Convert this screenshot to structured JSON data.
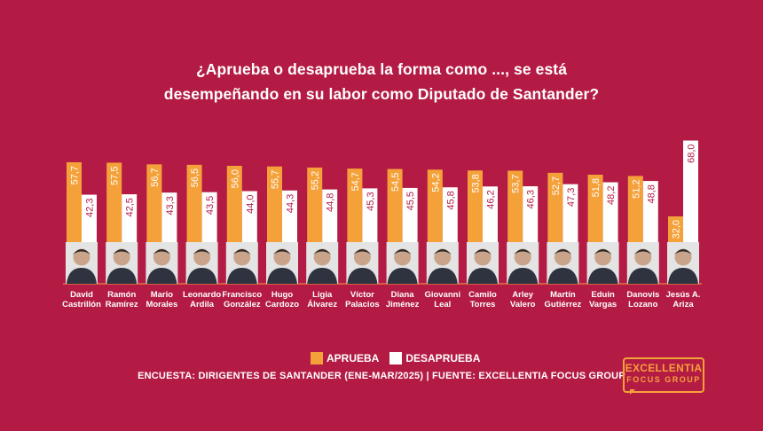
{
  "title_line1": "¿Aprueba o desaprueba la forma como ..., se está",
  "title_line2": "desempeñando en su labor como Diputado de Santander?",
  "legend": {
    "approve": "APRUEBA",
    "disapprove": "DESAPRUEBA"
  },
  "source": "ENCUESTA: DIRIGENTES DE SANTANDER (ENE-MAR/2025) | FUENTE: EXCELLENTIA FOCUS GROUP",
  "logo": {
    "line1": "EXCELLENTIA",
    "line2": "FOCUS GROUP"
  },
  "colors": {
    "background": "#b31b44",
    "approve": "#f5a13a",
    "disapprove": "#ffffff"
  },
  "chart_data": {
    "type": "bar",
    "categories": [
      [
        "David",
        "Castrillón"
      ],
      [
        "Ramón",
        "Ramírez"
      ],
      [
        "Mario",
        "Morales"
      ],
      [
        "Leonardo",
        "Ardila"
      ],
      [
        "Francisco",
        "González"
      ],
      [
        "Hugo",
        "Cardozo"
      ],
      [
        "Ligia",
        "Álvarez"
      ],
      [
        "Víctor",
        "Palacios"
      ],
      [
        "Diana",
        "Jiménez"
      ],
      [
        "Giovanni",
        "Leal"
      ],
      [
        "Camilo",
        "Torres"
      ],
      [
        "Arley",
        "Valero"
      ],
      [
        "Martín",
        "Gutiérrez"
      ],
      [
        "Eduin",
        "Vargas"
      ],
      [
        "Danovis",
        "Lozano"
      ],
      [
        "Jesús A.",
        "Ariza"
      ]
    ],
    "series": [
      {
        "name": "APRUEBA",
        "values": [
          "57,7",
          "57,5",
          "56,7",
          "56,5",
          "56,0",
          "55,7",
          "55,2",
          "54,7",
          "54,5",
          "54,2",
          "53,8",
          "53,7",
          "52,7",
          "51,8",
          "51,2",
          "32,0"
        ]
      },
      {
        "name": "DESAPRUEBA",
        "values": [
          "42,3",
          "42,5",
          "43,3",
          "43,5",
          "44,0",
          "44,3",
          "44,8",
          "45,3",
          "45,5",
          "45,8",
          "46,2",
          "46,3",
          "47,3",
          "48,2",
          "48,8",
          "68,0"
        ]
      }
    ],
    "ylim": [
      0,
      70
    ],
    "legend_position": "bottom-center"
  }
}
